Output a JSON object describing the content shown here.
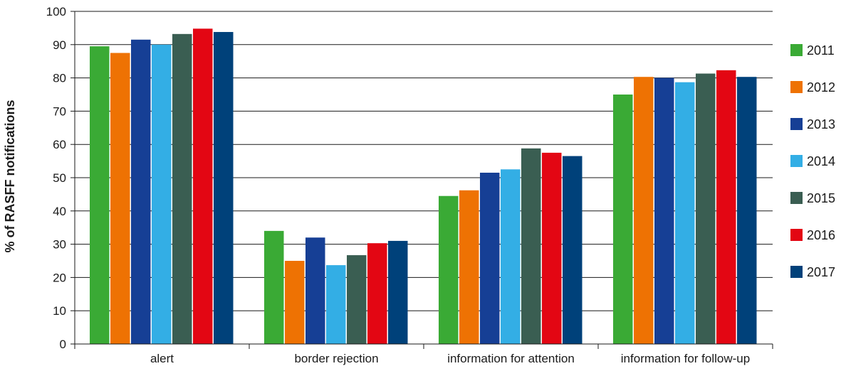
{
  "chart_data": {
    "type": "bar",
    "title": "",
    "xlabel": "",
    "ylabel": "% of RASFF notifications",
    "ylim": [
      0,
      100
    ],
    "yticks": [
      0,
      10,
      20,
      30,
      40,
      50,
      60,
      70,
      80,
      90,
      100
    ],
    "grid": true,
    "legend_position": "right",
    "categories": [
      "alert",
      "border rejection",
      "information for attention",
      "information for follow-up"
    ],
    "series": [
      {
        "name": "2011",
        "color": "#3aaa35",
        "values": [
          89.5,
          34.0,
          44.5,
          75.0
        ]
      },
      {
        "name": "2012",
        "color": "#ee7203",
        "values": [
          87.5,
          25.0,
          46.2,
          80.3
        ]
      },
      {
        "name": "2013",
        "color": "#163f95",
        "values": [
          91.5,
          32.0,
          51.5,
          80.0
        ]
      },
      {
        "name": "2014",
        "color": "#33aee5",
        "values": [
          90.0,
          23.7,
          52.5,
          78.7
        ]
      },
      {
        "name": "2015",
        "color": "#3a5e52",
        "values": [
          93.2,
          26.7,
          58.8,
          81.3
        ]
      },
      {
        "name": "2016",
        "color": "#e30613",
        "values": [
          94.8,
          30.3,
          57.5,
          82.3
        ]
      },
      {
        "name": "2017",
        "color": "#00417a",
        "values": [
          93.8,
          31.0,
          56.5,
          80.3
        ]
      }
    ]
  }
}
